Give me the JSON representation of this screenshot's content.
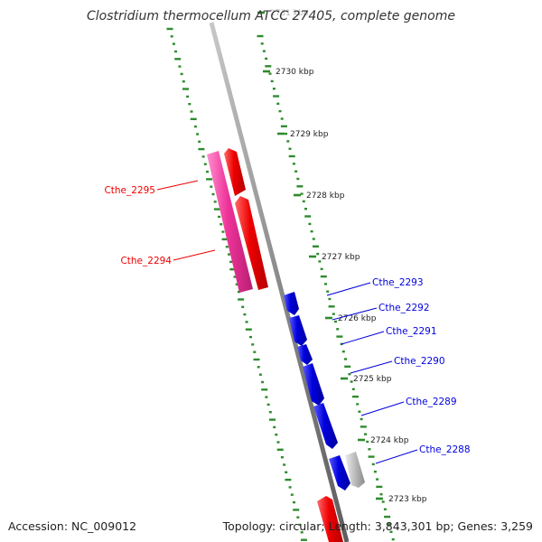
{
  "title": "Clostridium thermocellum ATCC 27405, complete genome",
  "footer": {
    "accession": "Accession: NC_009012",
    "summary": "Topology: circular; Length: 3,843,301 bp; Genes: 3,259"
  },
  "colors": {
    "backbone": "#8a8a8a",
    "tick": "#2e8b2e",
    "strand_pos": "#ee0000",
    "strand_pos_alt": "#ee3399",
    "strand_neg": "#0000dd",
    "other": "#bbbbbb"
  },
  "ticks": [
    {
      "label": "2731 kbp"
    },
    {
      "label": "2730 kbp"
    },
    {
      "label": "2729 kbp"
    },
    {
      "label": "2728 kbp"
    },
    {
      "label": "2727 kbp"
    },
    {
      "label": "2726 kbp"
    },
    {
      "label": "2725 kbp"
    },
    {
      "label": "2724 kbp"
    },
    {
      "label": "2723 kbp"
    }
  ],
  "genes": [
    {
      "name": "Cthe_2295",
      "strand": "+",
      "color": "#ee3399"
    },
    {
      "name": "Cthe_2294",
      "strand": "+",
      "color": "#ee3399"
    },
    {
      "name": "Cthe_2293",
      "strand": "-",
      "color": "#0000dd"
    },
    {
      "name": "Cthe_2292",
      "strand": "-",
      "color": "#0000dd"
    },
    {
      "name": "Cthe_2291",
      "strand": "-",
      "color": "#0000dd"
    },
    {
      "name": "Cthe_2290",
      "strand": "-",
      "color": "#0000dd"
    },
    {
      "name": "Cthe_2289",
      "strand": "-",
      "color": "#0000dd"
    },
    {
      "name": "Cthe_2288",
      "strand": "-",
      "color": "#0000dd"
    }
  ]
}
